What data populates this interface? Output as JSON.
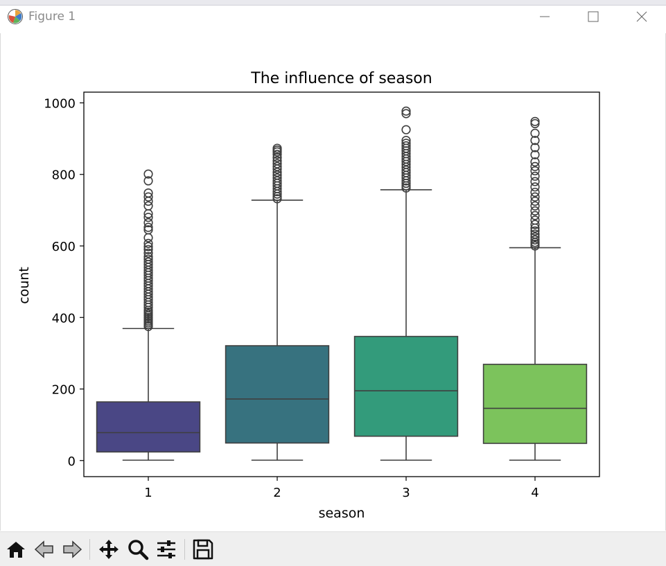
{
  "window": {
    "title": "Figure 1",
    "icon": "matplotlib-logo-icon",
    "controls": [
      "minimize-icon",
      "maximize-icon",
      "close-icon"
    ]
  },
  "toolbar": {
    "buttons": [
      "home-icon",
      "back-arrow-icon",
      "forward-arrow-icon",
      "pan-move-icon",
      "zoom-magnifier-icon",
      "configure-subplots-icon",
      "save-disk-icon"
    ]
  },
  "chart_data": {
    "type": "box",
    "title": "The influence of season",
    "xlabel": "season",
    "ylabel": "count",
    "categories": [
      "1",
      "2",
      "3",
      "4"
    ],
    "ylim": [
      -45,
      1030
    ],
    "yticks": [
      0,
      200,
      400,
      600,
      800,
      1000
    ],
    "grid": false,
    "colors": [
      "#4a4785",
      "#37727f",
      "#339b7b",
      "#7cc35c"
    ],
    "boxes": [
      {
        "category": "1",
        "whisker_low": 1,
        "q1": 24,
        "median": 78,
        "q3": 164,
        "whisker_high": 369,
        "outliers": [
          375,
          380,
          385,
          390,
          395,
          400,
          405,
          410,
          415,
          420,
          428,
          435,
          442,
          450,
          457,
          465,
          472,
          480,
          488,
          495,
          503,
          510,
          518,
          525,
          532,
          540,
          548,
          555,
          563,
          570,
          580,
          590,
          598,
          607,
          623,
          645,
          652,
          665,
          680,
          690,
          712,
          725,
          737,
          748,
          782,
          801
        ]
      },
      {
        "category": "2",
        "whisker_low": 1,
        "q1": 49,
        "median": 172,
        "q3": 321,
        "whisker_high": 728,
        "outliers": [
          732,
          738,
          745,
          752,
          760,
          768,
          775,
          782,
          790,
          798,
          806,
          815,
          822,
          830,
          838,
          847,
          856,
          863,
          868,
          873
        ]
      },
      {
        "category": "3",
        "whisker_low": 1,
        "q1": 68,
        "median": 195,
        "q3": 347,
        "whisker_high": 757,
        "outliers": [
          762,
          768,
          775,
          782,
          790,
          797,
          805,
          812,
          820,
          828,
          836,
          843,
          850,
          858,
          866,
          873,
          880,
          887,
          895,
          925,
          970,
          977
        ]
      },
      {
        "category": "4",
        "whisker_low": 1,
        "q1": 48,
        "median": 146,
        "q3": 269,
        "whisker_high": 595,
        "outliers": [
          600,
          605,
          610,
          617,
          625,
          633,
          642,
          650,
          660,
          672,
          685,
          698,
          712,
          725,
          737,
          750,
          765,
          780,
          795,
          810,
          822,
          835,
          855,
          875,
          895,
          915,
          942,
          948
        ]
      }
    ]
  }
}
